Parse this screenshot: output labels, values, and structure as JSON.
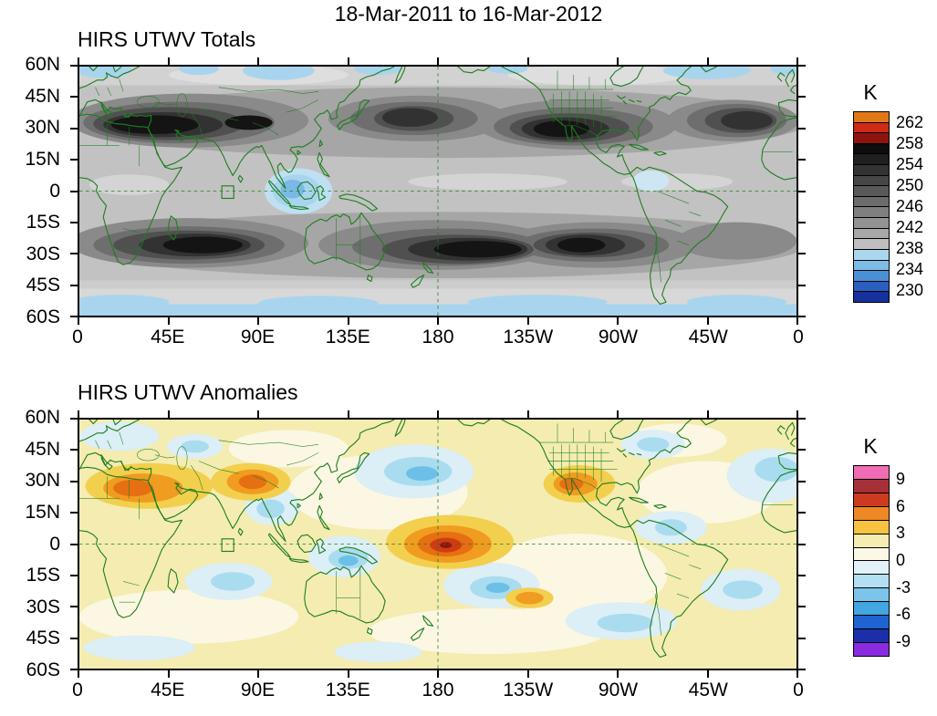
{
  "title": "18-Mar-2011 to 16-Mar-2012",
  "colors": {
    "coastline": "#1e7e1e",
    "frame": "#000000",
    "background": "#ffffff"
  },
  "axes": {
    "y_tick_labels": [
      "60N",
      "45N",
      "30N",
      "15N",
      "0",
      "15S",
      "30S",
      "45S",
      "60S"
    ],
    "x_tick_labels": [
      "0",
      "45E",
      "90E",
      "135E",
      "180",
      "135W",
      "90W",
      "45W",
      "0"
    ]
  },
  "panels": [
    {
      "title": "HIRS UTWV Totals",
      "colorbar": {
        "unit": "K",
        "tick_labels": [
          "262",
          "258",
          "254",
          "250",
          "246",
          "242",
          "238",
          "234",
          "230"
        ],
        "box_colors": [
          "#e07818",
          "#cf2a16",
          "#8e1410",
          "#0d0d0d",
          "#202020",
          "#333333",
          "#464646",
          "#595959",
          "#6c6c6c",
          "#7f7f7f",
          "#939393",
          "#a8a8a8",
          "#bfbfbf",
          "#aad6ee",
          "#7cbce6",
          "#4a90d9",
          "#2a5fc0",
          "#16309c"
        ]
      }
    },
    {
      "title": "HIRS UTWV Anomalies",
      "colorbar": {
        "unit": "K",
        "tick_labels": [
          "9",
          "6",
          "3",
          "0",
          "-3",
          "-6",
          "-9"
        ],
        "box_colors": [
          "#f06cb4",
          "#a63038",
          "#cc3b20",
          "#ee8822",
          "#f6c240",
          "#f6ecb2",
          "#fbf8e6",
          "#e2f2f8",
          "#b4dff2",
          "#7cc4ea",
          "#42a6e0",
          "#1f63d0",
          "#1c2fa8",
          "#8a2be2"
        ]
      }
    }
  ],
  "chart_data": [
    {
      "type": "heatmap",
      "title": "HIRS UTWV Totals",
      "period": "18-Mar-2011 to 16-Mar-2012",
      "units": "K",
      "projection": "cylindrical world map, longitude 0 eastward through 180 back to 0, latitude 60N to 60S",
      "x_ticks": [
        "0",
        "45E",
        "90E",
        "135E",
        "180",
        "135W",
        "90W",
        "45W",
        "0"
      ],
      "y_ticks": [
        "60N",
        "45N",
        "30N",
        "15N",
        "0",
        "15S",
        "30S",
        "45S",
        "60S"
      ],
      "colorbar_levels": [
        262,
        258,
        254,
        250,
        246,
        242,
        238,
        234,
        230
      ],
      "approx_value_range_K": [
        228,
        264
      ],
      "legend_position": "right",
      "features": [
        {
          "value_K": "248-254 (darkest shading)",
          "regions": "subtropical dry bands ~15-35N across N Africa, Arabia, S Asia and the NE Pacific; ~10-35S across the S Indian Ocean, Australia - S Pacific, and SE Pacific"
        },
        {
          "value_K": "<238 (blue)",
          "regions": "Maritime Continent / equatorial West Pacific, and high latitudes poleward of ~55N and ~55S"
        },
        {
          "value_K": "240-246 (mid grays)",
          "regions": "equatorial belt, mid-latitude storm tracks, NW South America"
        }
      ]
    },
    {
      "type": "heatmap",
      "title": "HIRS UTWV Anomalies",
      "period": "18-Mar-2011 to 16-Mar-2012",
      "units": "K",
      "projection": "cylindrical world map, longitude 0 eastward through 180 back to 0, latitude 60N to 60S",
      "x_ticks": [
        "0",
        "45E",
        "90E",
        "135E",
        "180",
        "135W",
        "90W",
        "45W",
        "0"
      ],
      "y_ticks": [
        "60N",
        "45N",
        "30N",
        "15N",
        "0",
        "15S",
        "30S",
        "45S",
        "60S"
      ],
      "colorbar_levels": [
        9,
        6,
        3,
        0,
        -3,
        -6,
        -9
      ],
      "approx_value_range_K": [
        -10.5,
        10.5
      ],
      "legend_position": "right",
      "features": [
        {
          "value_K": "+3 to +7 (orange/red core)",
          "regions": "equatorial central Pacific near the dateline, peak just south of the equator around 175W"
        },
        {
          "value_K": "+2 to +5 (yellow/orange)",
          "regions": "Sahara and Middle East, Tibetan Plateau / N India, SW United States and N Mexico, small patch in S Pacific near 25S 135W"
        },
        {
          "value_K": "-2 to -4 (light/medium blue)",
          "regions": "N Pacific ~35-45N, NE Atlantic and Europe, central Asia, Bay of Bengal, Coral Sea, S Indian Ocean ~15-25S, S Pacific ~20-30S, tropical Atlantic/Caribbean, SE Pacific off Chile, S Atlantic"
        },
        {
          "value_K": "~0 (pale yellow / white)",
          "regions": "most remaining ocean and land areas"
        }
      ]
    }
  ]
}
